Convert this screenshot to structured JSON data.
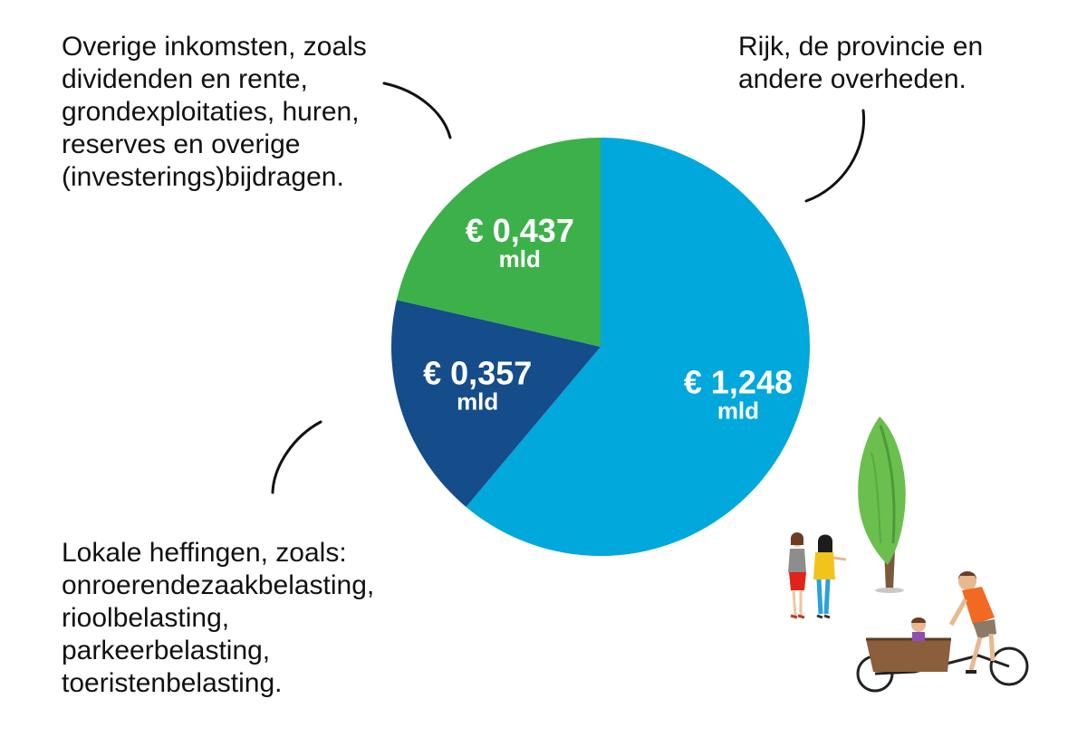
{
  "callouts": {
    "overig": [
      "Overige inkomsten, zoals",
      "dividenden en rente,",
      "grondexploitaties, huren,",
      "reserves en overige",
      "(investerings)bijdragen."
    ],
    "rijk": [
      "Rijk, de provincie en",
      "andere overheden."
    ],
    "heffingen": [
      "Lokale heffingen, zoals:",
      "onroerendezaakbelasting,",
      "rioolbelasting,",
      "parkeerbelasting,",
      "toeristenbelasting."
    ]
  },
  "chart_data": {
    "type": "pie",
    "unit": "mld",
    "start_angle_deg": 0,
    "direction": "clockwise",
    "slices": [
      {
        "key": "rijk",
        "value": 1.248,
        "amount": "€ 1,248",
        "unit": "mld",
        "color": "#00a8dc"
      },
      {
        "key": "heffingen",
        "value": 0.357,
        "amount": "€ 0,357",
        "unit": "mld",
        "color": "#154c8a"
      },
      {
        "key": "overig",
        "value": 0.437,
        "amount": "€ 0,437",
        "unit": "mld",
        "color": "#3cb14a"
      }
    ]
  },
  "illustration": {
    "icons": [
      "poplar-tree-icon",
      "two-women-talking-icon",
      "cargo-bike-rider-icon"
    ],
    "colors": {
      "tree": "#6bbf4e",
      "trunk": "#7a5a3a",
      "bike_box": "#8b5e3c",
      "shirt": "#f26a21"
    }
  }
}
